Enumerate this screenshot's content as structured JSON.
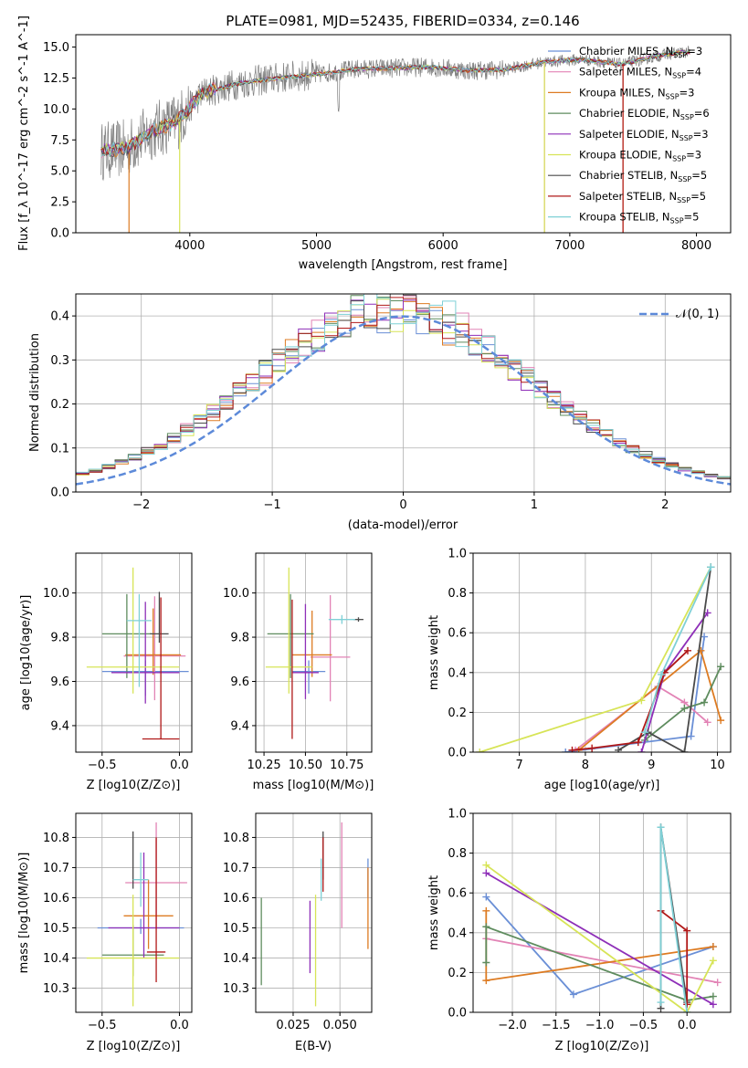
{
  "figure_title": "PLATE=0981, MJD=52435, FIBERID=0334, z=0.146",
  "colors": {
    "chabrier_miles": "#6a8fd6",
    "salpeter_miles": "#e283b5",
    "kroupa_miles": "#dd7b22",
    "chabrier_elodie": "#5e8c5e",
    "salpeter_elodie": "#8e2fb8",
    "kroupa_elodie": "#d7e457",
    "chabrier_stelib": "#4a4a4a",
    "salpeter_stelib": "#b01818",
    "kroupa_stelib": "#7fd0d6",
    "data": "#808080",
    "gauss": "#5d8ad9"
  },
  "chart_data": [
    {
      "id": "spectrum",
      "type": "line",
      "title": "PLATE=0981, MJD=52435, FIBERID=0334, z=0.146",
      "xlabel": "wavelength [Angstrom, rest frame]",
      "ylabel": "Flux [f_λ 10^-17 erg cm^-2 s^-1 A^-1]",
      "xlim": [
        3100,
        8270
      ],
      "ylim": [
        0,
        16
      ],
      "xticks": [
        "4000",
        "5000",
        "6000",
        "7000",
        "8000"
      ],
      "yticks": [
        "0.0",
        "2.5",
        "5.0",
        "7.5",
        "10.0",
        "12.5",
        "15.0"
      ],
      "grid": false,
      "legend_position": "top-right",
      "legend": [
        "Chabrier MILES, N_SSP=3",
        "Salpeter MILES, N_SSP=4",
        "Kroupa MILES, N_SSP=3",
        "Chabrier ELODIE, N_SSP=6",
        "Salpeter ELODIE, N_SSP=3",
        "Kroupa ELODIE, N_SSP=3",
        "Chabrier STELIB, N_SSP=5",
        "Salpeter STELIB, N_SSP=5",
        "Kroupa STELIB, N_SSP=5"
      ],
      "continuum": {
        "x": [
          3300,
          3500,
          3700,
          3900,
          4100,
          4400,
          4700,
          5000,
          5300,
          5600,
          5900,
          6200,
          6500,
          6800,
          7100,
          7400,
          7700,
          7900
        ],
        "y": [
          6.6,
          6.8,
          8.2,
          9.0,
          11.3,
          12.1,
          12.5,
          12.8,
          13.2,
          13.3,
          13.4,
          13.1,
          13.2,
          13.8,
          14.0,
          13.6,
          14.3,
          14.6
        ]
      }
    },
    {
      "id": "residuals",
      "type": "histogram",
      "xlabel": "(data-model)/error",
      "ylabel": "Normed distribution",
      "xlim": [
        -2.5,
        2.5
      ],
      "ylim": [
        0,
        0.45
      ],
      "xticks": [
        "−2",
        "−1",
        "0",
        "1",
        "2"
      ],
      "yticks": [
        "0.0",
        "0.1",
        "0.2",
        "0.3",
        "0.4"
      ],
      "grid": true,
      "legend_position": "top-right",
      "legend": [
        "𝒩(0, 1)"
      ]
    },
    {
      "id": "age_vs_Z",
      "type": "errorbar",
      "xlabel": "Z [log10(Z/Z⊙)]",
      "ylabel": "age [log10(age/yr)]",
      "xlim": [
        -0.67,
        0.08
      ],
      "ylim": [
        9.28,
        10.18
      ],
      "xticks": [
        "−0.5",
        "0.0"
      ],
      "yticks": [
        "9.4",
        "9.6",
        "9.8",
        "10.0"
      ],
      "grid": true,
      "points": [
        {
          "model": "chabrier_miles",
          "x": -0.22,
          "y": 9.645,
          "xerr": 0.28,
          "yerr": [
            0.11,
            0.05
          ]
        },
        {
          "model": "salpeter_miles",
          "x": -0.16,
          "y": 9.715,
          "xerr": 0.2,
          "yerr": [
            0.2,
            0.27
          ]
        },
        {
          "model": "kroupa_miles",
          "x": -0.17,
          "y": 9.72,
          "xerr": 0.18,
          "yerr": [
            0.09,
            0.21
          ]
        },
        {
          "model": "chabrier_elodie",
          "x": -0.34,
          "y": 9.815,
          "xerr": 0.16,
          "yerr": [
            0.2,
            0.18
          ]
        },
        {
          "model": "salpeter_elodie",
          "x": -0.22,
          "y": 9.64,
          "xerr": 0.22,
          "yerr": [
            0.14,
            0.32
          ]
        },
        {
          "model": "kroupa_elodie",
          "x": -0.3,
          "y": 9.665,
          "xerr": 0.3,
          "yerr": [
            0.12,
            0.45
          ]
        },
        {
          "model": "chabrier_stelib",
          "x": -0.13,
          "y": 9.815,
          "xerr": 0.06,
          "yerr": [
            0.04,
            0.19
          ]
        },
        {
          "model": "salpeter_stelib",
          "x": -0.12,
          "y": 9.34,
          "xerr": 0.12,
          "yerr": [
            0.0,
            0.64
          ]
        },
        {
          "model": "kroupa_stelib",
          "x": -0.26,
          "y": 9.875,
          "xerr": 0.08,
          "yerr": [
            0.3,
            0.12
          ]
        }
      ]
    },
    {
      "id": "age_vs_mass",
      "type": "errorbar",
      "xlabel": "mass [log10(M/M⊙)]",
      "ylabel": "",
      "xlim": [
        10.2,
        10.9
      ],
      "ylim": [
        9.28,
        10.18
      ],
      "xticks": [
        "10.25",
        "10.50",
        "10.75"
      ],
      "yticks": [
        "9.4",
        "9.6",
        "9.8",
        "10.0"
      ],
      "grid": true,
      "points": [
        {
          "model": "chabrier_miles",
          "x": 10.52,
          "y": 9.645,
          "xerr": 0.1,
          "yerr": [
            0.1,
            0.05
          ]
        },
        {
          "model": "salpeter_miles",
          "x": 10.65,
          "y": 9.71,
          "xerr": 0.12,
          "yerr": [
            0.2,
            0.28
          ]
        },
        {
          "model": "kroupa_miles",
          "x": 10.54,
          "y": 9.72,
          "xerr": 0.12,
          "yerr": [
            0.1,
            0.2
          ]
        },
        {
          "model": "chabrier_elodie",
          "x": 10.41,
          "y": 9.815,
          "xerr": 0.14,
          "yerr": [
            0.2,
            0.18
          ]
        },
        {
          "model": "salpeter_elodie",
          "x": 10.5,
          "y": 9.64,
          "xerr": 0.08,
          "yerr": [
            0.12,
            0.31
          ]
        },
        {
          "model": "kroupa_elodie",
          "x": 10.4,
          "y": 9.665,
          "xerr": 0.14,
          "yerr": [
            0.12,
            0.45
          ]
        },
        {
          "model": "chabrier_stelib",
          "x": 10.82,
          "y": 9.88,
          "xerr": 0.03,
          "yerr": [
            0.01,
            0.01
          ]
        },
        {
          "model": "salpeter_stelib",
          "x": 10.42,
          "y": 9.34,
          "xerr": 0.0,
          "yerr": [
            0.0,
            0.63
          ]
        },
        {
          "model": "kroupa_stelib",
          "x": 10.72,
          "y": 9.88,
          "xerr": 0.08,
          "yerr": [
            0.02,
            0.02
          ]
        }
      ]
    },
    {
      "id": "mass_weight_vs_age",
      "type": "line",
      "xlabel": "age [log10(age/yr)]",
      "ylabel": "mass weight",
      "xlim": [
        6.3,
        10.2
      ],
      "ylim": [
        0,
        1
      ],
      "xticks": [
        "7",
        "8",
        "9",
        "10"
      ],
      "yticks": [
        "0.0",
        "0.2",
        "0.4",
        "0.6",
        "0.8",
        "1.0"
      ],
      "grid": true,
      "series": [
        {
          "model": "chabrier_miles",
          "x": [
            7.7,
            9.6,
            9.8
          ],
          "y": [
            0.0,
            0.08,
            0.58
          ]
        },
        {
          "model": "salpeter_miles",
          "x": [
            7.85,
            9.1,
            9.5,
            9.85
          ],
          "y": [
            0.01,
            0.33,
            0.25,
            0.15
          ]
        },
        {
          "model": "kroupa_miles",
          "x": [
            7.9,
            9.75,
            10.05
          ],
          "y": [
            0.01,
            0.51,
            0.16
          ]
        },
        {
          "model": "chabrier_elodie",
          "x": [
            8.9,
            9.5,
            9.8,
            10.05
          ],
          "y": [
            0.06,
            0.22,
            0.25,
            0.43
          ]
        },
        {
          "model": "salpeter_elodie",
          "x": [
            8.85,
            9.2,
            9.85
          ],
          "y": [
            0.0,
            0.4,
            0.7
          ]
        },
        {
          "model": "kroupa_elodie",
          "x": [
            6.4,
            8.85,
            9.9
          ],
          "y": [
            0.0,
            0.26,
            0.93
          ]
        },
        {
          "model": "chabrier_stelib",
          "x": [
            8.5,
            8.95,
            9.5,
            9.9
          ],
          "y": [
            0.01,
            0.1,
            0.0,
            0.93
          ]
        },
        {
          "model": "salpeter_stelib",
          "x": [
            7.8,
            8.1,
            8.8,
            9.2,
            9.55
          ],
          "y": [
            0.01,
            0.02,
            0.05,
            0.4,
            0.51
          ]
        },
        {
          "model": "kroupa_stelib",
          "x": [
            8.9,
            9.15,
            9.9
          ],
          "y": [
            0.1,
            0.39,
            0.93
          ]
        }
      ]
    },
    {
      "id": "mass_vs_Z",
      "type": "errorbar",
      "xlabel": "Z [log10(Z/Z⊙)]",
      "ylabel": "mass [log10(M/M⊙)]",
      "xlim": [
        -0.67,
        0.08
      ],
      "ylim": [
        10.22,
        10.88
      ],
      "xticks": [
        "−0.5",
        "0.0"
      ],
      "yticks": [
        "10.3",
        "10.4",
        "10.5",
        "10.6",
        "10.7",
        "10.8"
      ],
      "grid": true,
      "points": [
        {
          "model": "chabrier_miles",
          "x": -0.25,
          "y": 10.5,
          "xerr": 0.28,
          "yerr": [
            0.02,
            0.03
          ]
        },
        {
          "model": "salpeter_miles",
          "x": -0.15,
          "y": 10.65,
          "xerr": 0.2,
          "yerr": [
            0.15,
            0.2
          ]
        },
        {
          "model": "kroupa_miles",
          "x": -0.2,
          "y": 10.54,
          "xerr": 0.16,
          "yerr": [
            0.11,
            0.12
          ]
        },
        {
          "model": "chabrier_elodie",
          "x": -0.3,
          "y": 10.41,
          "xerr": 0.2,
          "yerr": [
            0.07,
            0.1
          ]
        },
        {
          "model": "salpeter_elodie",
          "x": -0.23,
          "y": 10.5,
          "xerr": 0.23,
          "yerr": [
            0.1,
            0.25
          ]
        },
        {
          "model": "kroupa_elodie",
          "x": -0.3,
          "y": 10.4,
          "xerr": 0.3,
          "yerr": [
            0.16,
            0.21
          ]
        },
        {
          "model": "chabrier_stelib",
          "x": -0.3,
          "y": 10.73,
          "xerr": 0.0,
          "yerr": [
            0.1,
            0.09
          ]
        },
        {
          "model": "salpeter_stelib",
          "x": -0.15,
          "y": 10.42,
          "xerr": 0.06,
          "yerr": [
            0.1,
            0.38
          ]
        },
        {
          "model": "kroupa_stelib",
          "x": -0.25,
          "y": 10.66,
          "xerr": 0.05,
          "yerr": [
            0.09,
            0.09
          ]
        }
      ]
    },
    {
      "id": "mass_vs_ebv",
      "type": "errorbar",
      "xlabel": "E(B-V)",
      "ylabel": "",
      "xlim": [
        0.005,
        0.067
      ],
      "ylim": [
        10.22,
        10.88
      ],
      "xticks": [
        "0.025",
        "0.050"
      ],
      "yticks": [
        "10.3",
        "10.4",
        "10.5",
        "10.6",
        "10.7",
        "10.8"
      ],
      "grid": true,
      "points": [
        {
          "model": "chabrier_miles",
          "x": 0.065,
          "y": 10.65,
          "xerr": 0.0,
          "yerr": [
            0.05,
            0.08
          ]
        },
        {
          "model": "salpeter_miles",
          "x": 0.051,
          "y": 10.66,
          "xerr": 0.0,
          "yerr": [
            0.16,
            0.19
          ]
        },
        {
          "model": "kroupa_miles",
          "x": 0.065,
          "y": 10.54,
          "xerr": 0.0,
          "yerr": [
            0.11,
            0.16
          ]
        },
        {
          "model": "chabrier_elodie",
          "x": 0.008,
          "y": 10.42,
          "xerr": 0.0,
          "yerr": [
            0.11,
            0.18
          ]
        },
        {
          "model": "salpeter_elodie",
          "x": 0.034,
          "y": 10.44,
          "xerr": 0.0,
          "yerr": [
            0.09,
            0.15
          ]
        },
        {
          "model": "kroupa_elodie",
          "x": 0.037,
          "y": 10.43,
          "xerr": 0.0,
          "yerr": [
            0.19,
            0.18
          ]
        },
        {
          "model": "chabrier_stelib",
          "x": 0.041,
          "y": 10.74,
          "xerr": 0.0,
          "yerr": [
            0.08,
            0.08
          ]
        },
        {
          "model": "salpeter_stelib",
          "x": 0.041,
          "y": 10.7,
          "xerr": 0.0,
          "yerr": [
            0.08,
            0.1
          ]
        },
        {
          "model": "kroupa_stelib",
          "x": 0.04,
          "y": 10.66,
          "xerr": 0.0,
          "yerr": [
            0.07,
            0.07
          ]
        }
      ]
    },
    {
      "id": "mass_weight_vs_Z",
      "type": "line",
      "xlabel": "Z [log10(Z/Z⊙)]",
      "ylabel": "mass weight",
      "xlim": [
        -2.45,
        0.5
      ],
      "ylim": [
        0,
        1
      ],
      "xticks": [
        "−2.0",
        "−1.5",
        "−1.0",
        "−0.5",
        "0.0"
      ],
      "yticks": [
        "0.0",
        "0.2",
        "0.4",
        "0.6",
        "0.8",
        "1.0"
      ],
      "grid": true,
      "series": [
        {
          "model": "chabrier_miles",
          "x": [
            -2.3,
            -1.3,
            0.3
          ],
          "y": [
            0.58,
            0.09,
            0.33
          ]
        },
        {
          "model": "salpeter_miles",
          "x": [
            -2.3,
            0.35
          ],
          "y": [
            0.37,
            0.15
          ]
        },
        {
          "model": "kroupa_miles",
          "x": [
            -2.3,
            -2.3,
            0.3
          ],
          "y": [
            0.51,
            0.16,
            0.33
          ]
        },
        {
          "model": "chabrier_elodie",
          "x": [
            -2.3,
            -2.3,
            0.0,
            0.3
          ],
          "y": [
            0.25,
            0.43,
            0.06,
            0.08
          ]
        },
        {
          "model": "salpeter_elodie",
          "x": [
            -2.3,
            0.3
          ],
          "y": [
            0.7,
            0.04
          ]
        },
        {
          "model": "kroupa_elodie",
          "x": [
            -2.3,
            0.0,
            0.3
          ],
          "y": [
            0.74,
            0.0,
            0.26
          ]
        },
        {
          "model": "chabrier_stelib",
          "x": [
            -0.3,
            -0.3,
            0.0
          ],
          "y": [
            0.02,
            0.93,
            0.05
          ]
        },
        {
          "model": "salpeter_stelib",
          "x": [
            -0.3,
            0.0,
            0.0
          ],
          "y": [
            0.51,
            0.41,
            0.04
          ]
        },
        {
          "model": "kroupa_stelib",
          "x": [
            -0.3,
            -0.3,
            0.0
          ],
          "y": [
            0.05,
            0.93,
            0.0
          ]
        }
      ]
    }
  ]
}
